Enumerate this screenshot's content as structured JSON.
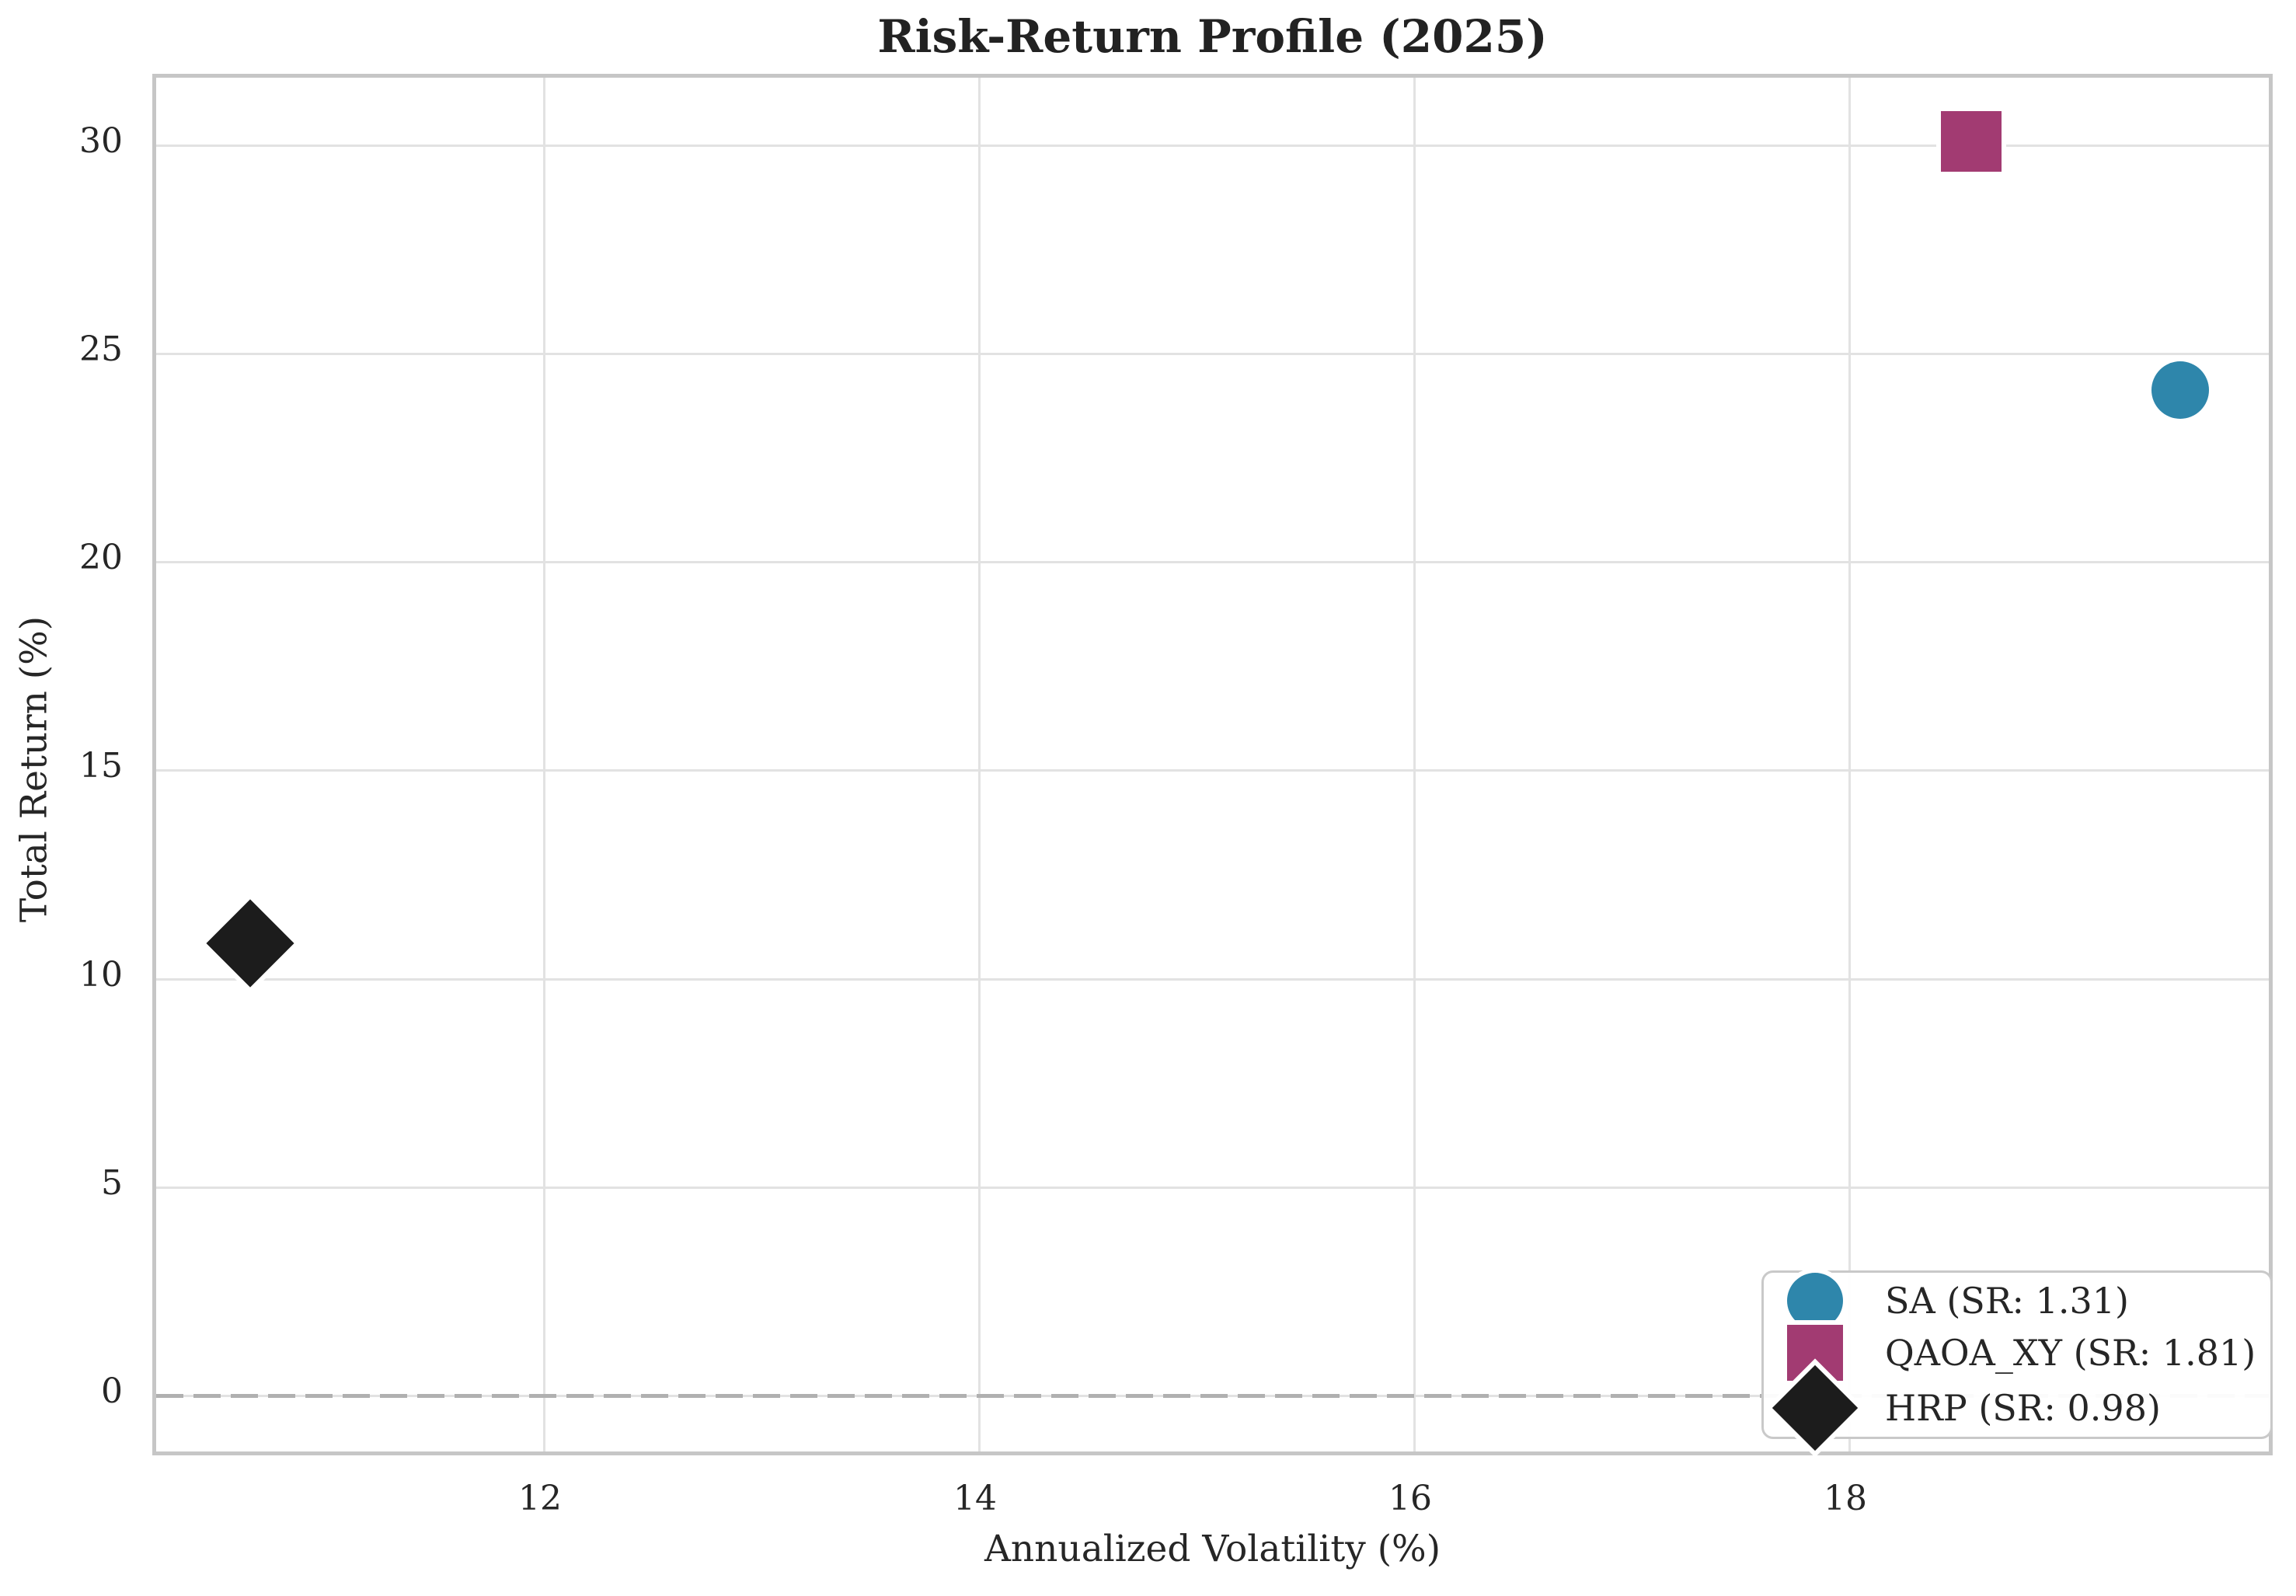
{
  "chart_data": {
    "type": "scatter",
    "title": "Risk-Return Profile (2025)",
    "xlabel": "Annualized Volatility (%)",
    "ylabel": "Total Return (%)",
    "xlim": [
      10.2,
      20.0
    ],
    "ylim": [
      -1.4,
      31.6
    ],
    "x_ticks": [
      12,
      14,
      16,
      18
    ],
    "y_ticks": [
      0,
      5,
      10,
      15,
      20,
      25,
      30
    ],
    "grid": true,
    "legend_position": "lower right",
    "zero_line": {
      "y": 0,
      "style": "dashed",
      "color": "#b0b0b0"
    },
    "series": [
      {
        "name": "SA (SR: 1.31)",
        "strategy": "SA",
        "sharpe_ratio": 1.31,
        "marker": "circle",
        "color": "#2E86AB",
        "points": [
          {
            "x": 19.52,
            "y": 24.13
          }
        ]
      },
      {
        "name": "QAOA_XY (SR: 1.81)",
        "strategy": "QAOA_XY",
        "sharpe_ratio": 1.81,
        "marker": "square",
        "color": "#A23B72",
        "points": [
          {
            "x": 18.56,
            "y": 30.09
          }
        ]
      },
      {
        "name": "HRP (SR: 0.98)",
        "strategy": "HRP",
        "sharpe_ratio": 0.98,
        "marker": "diamond",
        "color": "#1C1C1C",
        "points": [
          {
            "x": 10.65,
            "y": 10.85
          }
        ]
      }
    ]
  }
}
